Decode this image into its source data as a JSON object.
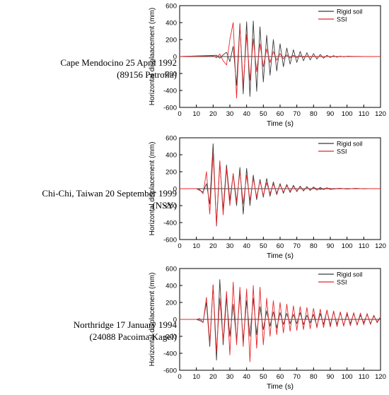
{
  "chart_data": [
    {
      "type": "line",
      "caption": [
        "Cape Mendocino 25 April 1992",
        "(89156 Petrolia)"
      ],
      "xlabel": "Time (s)",
      "ylabel": "Horizontal displaacement (mm)",
      "xlim": [
        0,
        120
      ],
      "ylim": [
        -600,
        600
      ],
      "xticks": [
        0,
        10,
        20,
        30,
        40,
        50,
        60,
        70,
        80,
        90,
        100,
        110,
        120
      ],
      "yticks": [
        -600,
        -400,
        -200,
        0,
        200,
        400,
        600
      ],
      "legend_position": "top-right",
      "series": [
        {
          "name": "Rigid soil",
          "color": "#3a3a3a",
          "x": [
            0,
            22,
            24,
            26,
            28,
            30,
            32,
            34,
            36,
            38,
            40,
            42,
            44,
            46,
            48,
            50,
            52,
            54,
            56,
            58,
            60,
            62,
            64,
            66,
            68,
            70,
            72,
            74,
            76,
            78,
            80,
            82,
            84,
            86,
            88,
            90,
            92,
            94,
            96,
            98,
            100,
            105,
            110,
            120
          ],
          "y": [
            0,
            15,
            -20,
            20,
            50,
            -60,
            120,
            -340,
            390,
            -440,
            410,
            -470,
            420,
            -410,
            350,
            -300,
            250,
            -220,
            200,
            -170,
            150,
            -120,
            100,
            -90,
            80,
            -70,
            60,
            -50,
            45,
            -40,
            35,
            -30,
            25,
            -20,
            15,
            -12,
            10,
            -8,
            6,
            -4,
            3,
            2,
            1,
            0
          ]
        },
        {
          "name": "SSI",
          "color": "#e8262a",
          "x": [
            0,
            20,
            22,
            24,
            26,
            28,
            30,
            32,
            34,
            36,
            38,
            40,
            42,
            44,
            46,
            48,
            50,
            52,
            54,
            56,
            58,
            60,
            62,
            64,
            66,
            68,
            70,
            72,
            74,
            76,
            78,
            80,
            82,
            84,
            86,
            88,
            90,
            95,
            100,
            110,
            120
          ],
          "y": [
            0,
            10,
            -15,
            30,
            -50,
            -100,
            200,
            400,
            -490,
            370,
            -350,
            260,
            -280,
            210,
            -180,
            150,
            -120,
            90,
            -70,
            60,
            -45,
            35,
            -28,
            22,
            -18,
            15,
            -12,
            10,
            -8,
            6,
            -5,
            4,
            -3,
            3,
            -2,
            2,
            -1,
            1,
            0,
            0,
            0
          ]
        }
      ]
    },
    {
      "type": "line",
      "caption": [
        "Chi-Chi, Taiwan 20 September 1999",
        "(NSY)"
      ],
      "xlabel": "Time (s)",
      "ylabel": "Horizontal displacement (mm)",
      "xlim": [
        0,
        120
      ],
      "ylim": [
        -600,
        600
      ],
      "xticks": [
        0,
        10,
        20,
        30,
        40,
        50,
        60,
        70,
        80,
        90,
        100,
        110,
        120
      ],
      "yticks": [
        -600,
        -400,
        -200,
        0,
        200,
        400,
        600
      ],
      "legend_position": "top-right",
      "series": [
        {
          "name": "Rigid soil",
          "color": "#3a3a3a",
          "x": [
            0,
            10,
            14,
            16,
            18,
            20,
            22,
            24,
            26,
            28,
            30,
            32,
            34,
            36,
            38,
            40,
            42,
            44,
            46,
            48,
            50,
            52,
            54,
            56,
            58,
            60,
            62,
            64,
            66,
            68,
            70,
            72,
            74,
            76,
            78,
            80,
            82,
            84,
            86,
            88,
            90,
            95,
            100,
            105,
            110,
            115,
            120
          ],
          "y": [
            0,
            0,
            -40,
            60,
            -180,
            530,
            -440,
            310,
            -250,
            280,
            -140,
            170,
            -200,
            250,
            -300,
            240,
            -200,
            160,
            -130,
            110,
            -100,
            120,
            -90,
            80,
            -70,
            60,
            -55,
            50,
            -45,
            40,
            -35,
            30,
            -28,
            25,
            -22,
            20,
            -18,
            15,
            -12,
            10,
            -8,
            5,
            -4,
            3,
            -2,
            1,
            0
          ]
        },
        {
          "name": "SSI",
          "color": "#e8262a",
          "x": [
            0,
            10,
            12,
            14,
            16,
            18,
            20,
            22,
            24,
            26,
            28,
            30,
            32,
            34,
            36,
            38,
            40,
            42,
            44,
            46,
            48,
            50,
            52,
            54,
            56,
            58,
            60,
            62,
            64,
            66,
            68,
            70,
            72,
            74,
            76,
            78,
            80,
            84,
            88,
            92,
            96,
            100,
            105,
            110,
            115,
            120
          ],
          "y": [
            0,
            0,
            -10,
            -60,
            200,
            -300,
            420,
            -420,
            330,
            -310,
            240,
            -200,
            180,
            -150,
            200,
            -180,
            160,
            -140,
            120,
            -100,
            90,
            -80,
            70,
            -60,
            55,
            -50,
            45,
            -40,
            35,
            -30,
            28,
            -25,
            22,
            -20,
            18,
            -15,
            12,
            -10,
            8,
            -6,
            5,
            -4,
            3,
            -2,
            1,
            0
          ]
        }
      ]
    },
    {
      "type": "line",
      "caption": [
        "Northridge 17 January 1994",
        "(24088 Pacoima Kagel)"
      ],
      "xlabel": "Time (s)",
      "ylabel": "Horizontal displacement (mm)",
      "xlim": [
        0,
        120
      ],
      "ylim": [
        -600,
        600
      ],
      "xticks": [
        0,
        10,
        20,
        30,
        40,
        50,
        60,
        70,
        80,
        90,
        100,
        110,
        120
      ],
      "yticks": [
        -600,
        -400,
        -200,
        0,
        200,
        400,
        600
      ],
      "legend_position": "top-right",
      "series": [
        {
          "name": "Rigid soil",
          "color": "#3a3a3a",
          "x": [
            0,
            10,
            14,
            16,
            18,
            20,
            22,
            24,
            26,
            28,
            30,
            32,
            34,
            36,
            38,
            40,
            42,
            44,
            46,
            48,
            50,
            52,
            54,
            56,
            58,
            60,
            62,
            64,
            66,
            68,
            70,
            72,
            74,
            76,
            78,
            80,
            82,
            84,
            86,
            88,
            90,
            92,
            94,
            96,
            98,
            100,
            102,
            104,
            106,
            108,
            110,
            112,
            114,
            116,
            118,
            120
          ],
          "y": [
            0,
            0,
            -30,
            200,
            -320,
            400,
            -480,
            470,
            -300,
            250,
            -200,
            180,
            -250,
            300,
            -250,
            220,
            -200,
            250,
            -180,
            150,
            -120,
            100,
            -80,
            90,
            -100,
            80,
            -60,
            70,
            -50,
            60,
            -50,
            80,
            -60,
            50,
            -40,
            60,
            -80,
            70,
            -60,
            110,
            -70,
            90,
            -60,
            80,
            -70,
            60,
            -50,
            70,
            -60,
            50,
            -40,
            60,
            -50,
            40,
            -30,
            30
          ]
        },
        {
          "name": "SSI",
          "color": "#e8262a",
          "x": [
            0,
            10,
            12,
            14,
            16,
            18,
            20,
            22,
            24,
            26,
            28,
            30,
            32,
            34,
            36,
            38,
            40,
            42,
            44,
            46,
            48,
            50,
            52,
            54,
            56,
            58,
            60,
            62,
            64,
            66,
            68,
            70,
            72,
            74,
            76,
            78,
            80,
            82,
            84,
            86,
            88,
            90,
            92,
            94,
            96,
            98,
            100,
            102,
            104,
            106,
            108,
            110,
            112,
            114,
            116,
            118,
            120
          ],
          "y": [
            0,
            0,
            10,
            -40,
            260,
            -280,
            410,
            -380,
            250,
            -260,
            330,
            -420,
            440,
            -300,
            380,
            -320,
            360,
            -500,
            400,
            -340,
            380,
            -300,
            250,
            -200,
            220,
            -180,
            200,
            -160,
            180,
            -140,
            160,
            -130,
            150,
            -120,
            140,
            -110,
            130,
            -100,
            120,
            -95,
            110,
            -90,
            100,
            -85,
            90,
            -80,
            85,
            -75,
            80,
            -70,
            75,
            -65,
            70,
            -60,
            50,
            -40,
            30
          ]
        }
      ]
    }
  ]
}
